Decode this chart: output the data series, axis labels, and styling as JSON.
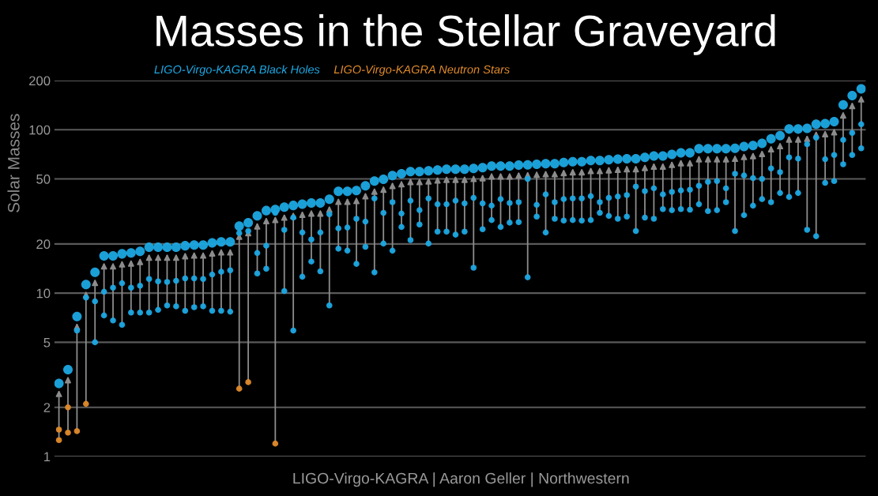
{
  "chart_data": {
    "type": "scatter",
    "title": "Masses in the Stellar Graveyard",
    "ylabel": "Solar Masses",
    "annotations": [
      "LIGO-Virgo-KAGRA | Aaron Geller | Northwestern"
    ],
    "categories": [
      null,
      null,
      null,
      null,
      null,
      null,
      null,
      null,
      null,
      null,
      null,
      null,
      null,
      null,
      null,
      null,
      null,
      null,
      null,
      null,
      null,
      null,
      null,
      null,
      null,
      null,
      null,
      null,
      null,
      null,
      null,
      null,
      null,
      null,
      null,
      null,
      null,
      null,
      null,
      null,
      null,
      null,
      null,
      null,
      null,
      null,
      null,
      null,
      null,
      null,
      null,
      null,
      null,
      null,
      null,
      null,
      null,
      null,
      null,
      null,
      null,
      null,
      null,
      null,
      null,
      null,
      null,
      null,
      null,
      null,
      null,
      null,
      null,
      null,
      null,
      null,
      null,
      null,
      null,
      null,
      null,
      null,
      null,
      null,
      null,
      null,
      null,
      null,
      null,
      null
    ],
    "series": [
      {
        "name": "LIGO-Virgo-KAGRA Black Holes",
        "color": "#1ca8e3",
        "values": [
          2.8,
          3.4,
          7.2,
          11.3,
          13.4,
          16.9,
          16.9,
          17.4,
          17.6,
          18,
          19.1,
          19.1,
          19.1,
          19.1,
          19.5,
          19.7,
          19.7,
          20.3,
          20.6,
          20.6,
          25.7,
          27,
          29.7,
          32,
          32.5,
          33.6,
          34.4,
          35,
          35.6,
          35.6,
          37.6,
          42,
          42,
          42.5,
          45.4,
          48.5,
          49.8,
          52.5,
          53.8,
          55.5,
          55.5,
          56,
          56.7,
          57.3,
          57.3,
          57.3,
          58,
          58.6,
          60,
          60,
          60,
          60.8,
          61,
          61.5,
          62,
          62,
          63,
          63.7,
          63.7,
          64.8,
          64.8,
          65.5,
          66,
          66.5,
          66.5,
          67.7,
          69,
          69,
          70.7,
          72.3,
          72.3,
          76.5,
          76.5,
          76.5,
          76.5,
          77,
          79,
          80,
          82.5,
          88,
          92,
          101,
          101,
          102,
          108,
          109,
          112,
          142,
          162,
          178
        ]
      },
      {
        "color": "#1ca8e3",
        "values": [
          null,
          null,
          5.9,
          9.4,
          8.9,
          10.2,
          10.8,
          11.5,
          10.8,
          11.1,
          12.2,
          11.8,
          11.7,
          11.9,
          12.3,
          12.3,
          12.2,
          13,
          13.5,
          13.8,
          23.3,
          24,
          17.6,
          19.5,
          31,
          24.4,
          29,
          23.5,
          21.3,
          23.5,
          30.4,
          24.9,
          25.2,
          28.5,
          27.4,
          38,
          31,
          36,
          30.7,
          36.8,
          32.2,
          38,
          35,
          35,
          36.8,
          35.4,
          38.3,
          35.4,
          34.3,
          37.6,
          35.6,
          36,
          50,
          34.7,
          40.2,
          36,
          37.6,
          38,
          38,
          39.2,
          36,
          38.3,
          39,
          39.8,
          44.9,
          42.1,
          43.8,
          40.2,
          41.6,
          42.5,
          42.9,
          45.4,
          48,
          48.5,
          43.8,
          53.8,
          52.5,
          50.6,
          50,
          58,
          55,
          67.7,
          66.5,
          81.5,
          89.5,
          66,
          70,
          86.7,
          95.7,
          108
        ]
      },
      {
        "color": "#1ca8e3",
        "values": [
          null,
          null,
          null,
          null,
          5,
          7.3,
          6.8,
          6.4,
          7.6,
          7.6,
          7.6,
          7.9,
          8.4,
          8.3,
          7.8,
          8.2,
          8.3,
          7.8,
          7.8,
          7.7,
          null,
          null,
          13.2,
          14.1,
          null,
          10.3,
          5.9,
          12.6,
          15.6,
          13.6,
          8.4,
          18.7,
          18.2,
          15.1,
          19.2,
          13.4,
          20.1,
          18.2,
          25.4,
          21.1,
          26.3,
          20.1,
          23.8,
          23.8,
          22.8,
          23.8,
          14.3,
          24.6,
          28,
          25.4,
          27,
          27.2,
          12.5,
          29.4,
          23.5,
          28.5,
          27.8,
          28,
          27.8,
          28,
          31,
          29.7,
          28.5,
          29.4,
          24,
          29,
          28.5,
          32.7,
          32.2,
          32.7,
          32.4,
          35,
          31.8,
          32.2,
          36,
          24,
          30,
          34.3,
          37.6,
          36,
          41,
          38.8,
          41,
          24.4,
          22.3,
          47.3,
          48.5,
          61.5,
          70,
          77
        ]
      },
      {
        "name": "LIGO-Virgo-KAGRA Neutron Stars",
        "color": "#e08a2a",
        "values": [
          1.46,
          2,
          null,
          null,
          null,
          null,
          null,
          null,
          null,
          null,
          null,
          null,
          null,
          null,
          null,
          null,
          null,
          null,
          null,
          null,
          null,
          null,
          null,
          null,
          null,
          null,
          null,
          null,
          null,
          null,
          null,
          null,
          null,
          null,
          null,
          null,
          null,
          null,
          null,
          null,
          null,
          null,
          null,
          null,
          null,
          null,
          null,
          null,
          null,
          null,
          null,
          null,
          null,
          null,
          null,
          null,
          null,
          null,
          null,
          null,
          null,
          null,
          null,
          null,
          null,
          null,
          null,
          null,
          null,
          null,
          null,
          null,
          null,
          null,
          null,
          null,
          null,
          null,
          null,
          null,
          null,
          null,
          null,
          null,
          null,
          null,
          null,
          null,
          null,
          null
        ]
      },
      {
        "color": "#e08a2a",
        "values": [
          1.26,
          1.4,
          1.43,
          2.1,
          null,
          null,
          null,
          null,
          null,
          null,
          null,
          null,
          null,
          null,
          null,
          null,
          null,
          null,
          null,
          null,
          2.6,
          2.85,
          null,
          null,
          1.2,
          null,
          null,
          null,
          null,
          null,
          null,
          null,
          null,
          null,
          null,
          null,
          null,
          null,
          null,
          null,
          null,
          null,
          null,
          null,
          null,
          null,
          null,
          null,
          null,
          null,
          null,
          null,
          null,
          null,
          null,
          null,
          null,
          null,
          null,
          null,
          null,
          null,
          null,
          null,
          null,
          null,
          null,
          null,
          null,
          null,
          null,
          null,
          null,
          null,
          null,
          null,
          null,
          null,
          null,
          null,
          null,
          null,
          null,
          null,
          null,
          null,
          null,
          null,
          null,
          null
        ]
      }
    ],
    "log": true,
    "ylim": [
      1,
      200
    ],
    "yticks": [
      1,
      2,
      5,
      10,
      20,
      50,
      100,
      200
    ],
    "grid": "y",
    "legend": "top left",
    "marker": "circle",
    "tick_labels": "y"
  }
}
